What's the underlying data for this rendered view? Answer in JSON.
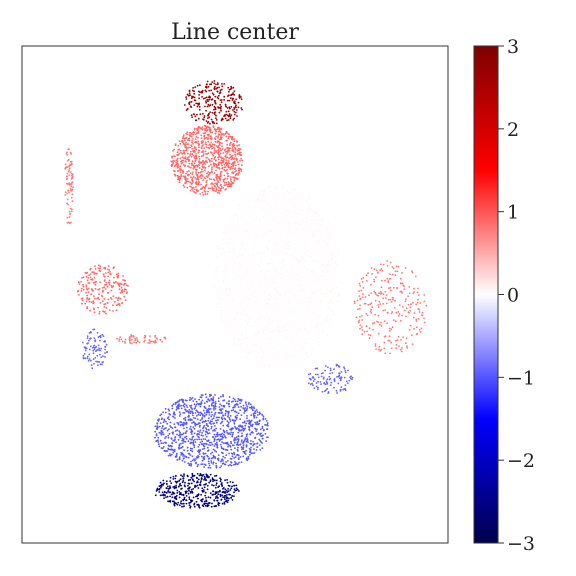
{
  "chart_data": {
    "type": "scatter",
    "title": "Line center",
    "xlabel": "",
    "ylabel": "",
    "grid": false,
    "legend": "none",
    "colorbar": {
      "colormap": "seismic",
      "range": [
        -3,
        3
      ],
      "ticks": [
        3,
        2,
        1,
        0,
        -1,
        -2,
        -3
      ],
      "tick_labels": [
        "3",
        "2",
        "1",
        "0",
        "−1",
        "−2",
        "−3"
      ],
      "colors": {
        "low": "#00004c",
        "mid_low": "#0000ff",
        "center": "#ffffff",
        "mid_high": "#ff0000",
        "high": "#7f0000"
      }
    },
    "clusters": [
      {
        "name": "",
        "value": 0.05,
        "x": [
          0.45,
          0.75
        ],
        "y": [
          0.35,
          0.72
        ],
        "count": 1200
      },
      {
        "name": "",
        "value": 0.9,
        "x": [
          0.35,
          0.52
        ],
        "y": [
          0.7,
          0.84
        ],
        "count": 900
      },
      {
        "name": "",
        "value": 2.7,
        "x": [
          0.38,
          0.52
        ],
        "y": [
          0.84,
          0.93
        ],
        "count": 260
      },
      {
        "name": "",
        "value": -1.0,
        "x": [
          0.31,
          0.58
        ],
        "y": [
          0.15,
          0.3
        ],
        "count": 1100
      },
      {
        "name": "",
        "value": -2.6,
        "x": [
          0.31,
          0.51
        ],
        "y": [
          0.07,
          0.14
        ],
        "count": 420
      },
      {
        "name": "",
        "value": 0.9,
        "x": [
          0.13,
          0.25
        ],
        "y": [
          0.46,
          0.56
        ],
        "count": 220
      },
      {
        "name": "",
        "value": -0.9,
        "x": [
          0.14,
          0.2
        ],
        "y": [
          0.35,
          0.43
        ],
        "count": 90
      },
      {
        "name": "",
        "value": 0.8,
        "x": [
          0.1,
          0.12
        ],
        "y": [
          0.63,
          0.8
        ],
        "count": 80
      },
      {
        "name": "",
        "value": 0.8,
        "x": [
          0.78,
          0.95
        ],
        "y": [
          0.38,
          0.57
        ],
        "count": 260
      },
      {
        "name": "",
        "value": -0.9,
        "x": [
          0.67,
          0.78
        ],
        "y": [
          0.3,
          0.36
        ],
        "count": 110
      },
      {
        "name": "",
        "value": 0.8,
        "x": [
          0.22,
          0.34
        ],
        "y": [
          0.4,
          0.42
        ],
        "count": 60
      }
    ]
  }
}
